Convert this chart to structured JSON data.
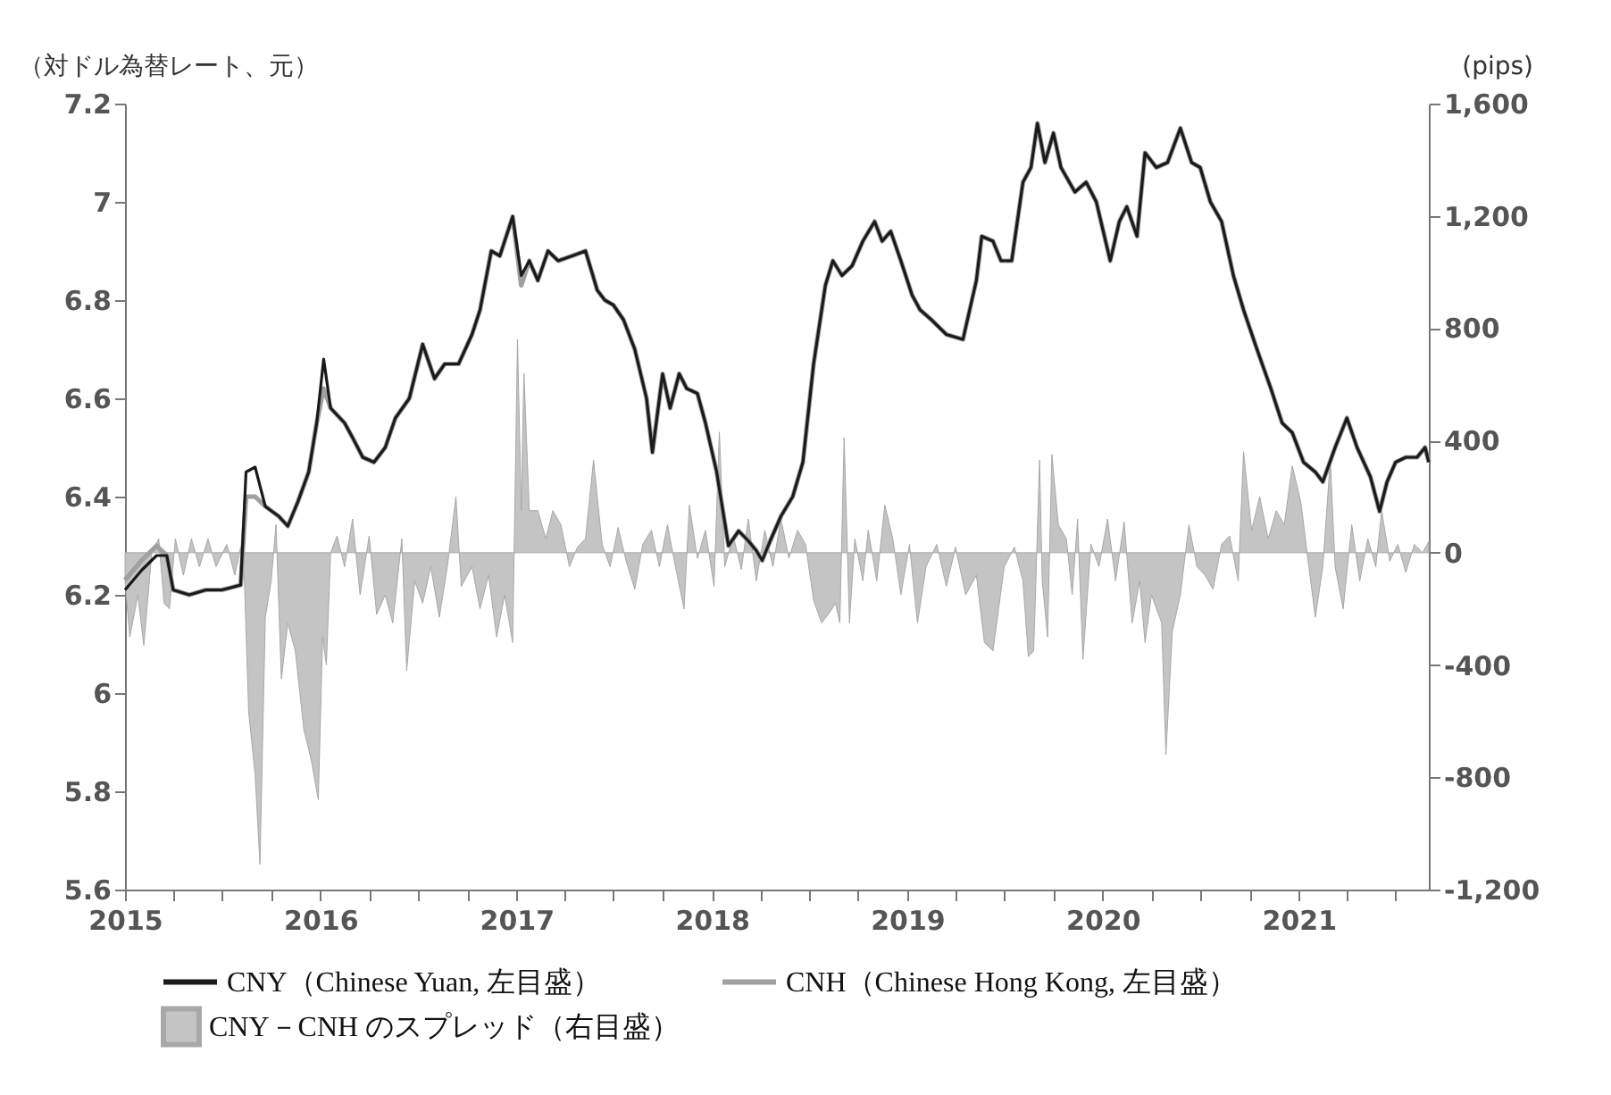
{
  "chart_data": {
    "type": "line",
    "ylabel": "（対ドル為替レート、元）",
    "y2label": "(pips)",
    "x": [
      "2015-01-01",
      "2015-02-01",
      "2015-03-01",
      "2015-03-20",
      "2015-04-01",
      "2015-05-01",
      "2015-06-01",
      "2015-07-01",
      "2015-08-05",
      "2015-08-15",
      "2015-09-01",
      "2015-09-20",
      "2015-10-15",
      "2015-11-01",
      "2015-11-20",
      "2015-12-10",
      "2015-12-25",
      "2016-01-07",
      "2016-01-20",
      "2016-02-15",
      "2016-03-01",
      "2016-03-20",
      "2016-04-10",
      "2016-05-01",
      "2016-05-20",
      "2016-06-15",
      "2016-07-10",
      "2016-08-01",
      "2016-08-20",
      "2016-09-15",
      "2016-10-10",
      "2016-10-25",
      "2016-11-15",
      "2016-12-01",
      "2016-12-25",
      "2017-01-10",
      "2017-01-25",
      "2017-02-10",
      "2017-03-01",
      "2017-03-20",
      "2017-04-15",
      "2017-05-10",
      "2017-06-01",
      "2017-06-15",
      "2017-07-01",
      "2017-07-20",
      "2017-08-10",
      "2017-09-01",
      "2017-09-12",
      "2017-10-01",
      "2017-10-15",
      "2017-11-01",
      "2017-11-15",
      "2017-12-05",
      "2017-12-20",
      "2018-01-10",
      "2018-02-01",
      "2018-02-20",
      "2018-03-10",
      "2018-03-25",
      "2018-04-05",
      "2018-04-20",
      "2018-05-10",
      "2018-06-01",
      "2018-06-20",
      "2018-07-10",
      "2018-08-01",
      "2018-08-15",
      "2018-09-01",
      "2018-09-20",
      "2018-10-10",
      "2018-11-01",
      "2018-11-15",
      "2018-12-01",
      "2018-12-20",
      "2019-01-10",
      "2019-01-25",
      "2019-02-15",
      "2019-03-15",
      "2019-04-15",
      "2019-05-10",
      "2019-05-20",
      "2019-06-10",
      "2019-06-25",
      "2019-07-15",
      "2019-08-05",
      "2019-08-20",
      "2019-09-01",
      "2019-09-15",
      "2019-10-01",
      "2019-10-15",
      "2019-11-10",
      "2019-12-01",
      "2019-12-20",
      "2020-01-15",
      "2020-02-01",
      "2020-02-15",
      "2020-03-05",
      "2020-03-20",
      "2020-04-10",
      "2020-05-01",
      "2020-05-25",
      "2020-06-15",
      "2020-07-01",
      "2020-07-20",
      "2020-08-10",
      "2020-09-01",
      "2020-09-20",
      "2020-10-15",
      "2020-11-10",
      "2020-12-01",
      "2020-12-20",
      "2021-01-10",
      "2021-02-01",
      "2021-02-15",
      "2021-03-10",
      "2021-04-01",
      "2021-04-20",
      "2021-05-15",
      "2021-06-01",
      "2021-06-15",
      "2021-07-01",
      "2021-07-20",
      "2021-08-10",
      "2021-08-25",
      "2021-09-01"
    ],
    "series": [
      {
        "name": "CNY（Chinese Yuan, 左目盛）",
        "color": "#1a1a1a",
        "values": [
          6.21,
          6.25,
          6.28,
          6.28,
          6.21,
          6.2,
          6.21,
          6.21,
          6.22,
          6.45,
          6.46,
          6.38,
          6.36,
          6.34,
          6.39,
          6.45,
          6.55,
          6.68,
          6.58,
          6.55,
          6.52,
          6.48,
          6.47,
          6.5,
          6.56,
          6.6,
          6.71,
          6.64,
          6.67,
          6.67,
          6.73,
          6.78,
          6.9,
          6.89,
          6.97,
          6.85,
          6.88,
          6.84,
          6.9,
          6.88,
          6.89,
          6.9,
          6.82,
          6.8,
          6.79,
          6.76,
          6.7,
          6.6,
          6.49,
          6.65,
          6.58,
          6.65,
          6.62,
          6.61,
          6.55,
          6.45,
          6.3,
          6.33,
          6.31,
          6.29,
          6.27,
          6.31,
          6.36,
          6.4,
          6.47,
          6.67,
          6.83,
          6.88,
          6.85,
          6.87,
          6.92,
          6.96,
          6.92,
          6.94,
          6.88,
          6.81,
          6.78,
          6.76,
          6.73,
          6.72,
          6.84,
          6.93,
          6.92,
          6.88,
          6.88,
          7.04,
          7.07,
          7.16,
          7.08,
          7.14,
          7.07,
          7.02,
          7.04,
          7.0,
          6.88,
          6.96,
          6.99,
          6.93,
          7.1,
          7.07,
          7.08,
          7.15,
          7.08,
          7.07,
          7.0,
          6.96,
          6.85,
          6.78,
          6.7,
          6.62,
          6.55,
          6.53,
          6.47,
          6.45,
          6.43,
          6.5,
          6.56,
          6.5,
          6.44,
          6.37,
          6.43,
          6.47,
          6.48,
          6.48,
          6.5,
          6.47
        ]
      },
      {
        "name": "CNH（Chinese Hong Kong, 左目盛）",
        "color": "#a0a0a0",
        "values": [
          6.23,
          6.27,
          6.3,
          6.28,
          6.21,
          6.2,
          6.21,
          6.21,
          6.22,
          6.4,
          6.4,
          6.38,
          6.36,
          6.34,
          6.39,
          6.45,
          6.55,
          6.62,
          6.58,
          6.55,
          6.52,
          6.48,
          6.47,
          6.5,
          6.56,
          6.6,
          6.71,
          6.64,
          6.67,
          6.67,
          6.73,
          6.78,
          6.9,
          6.89,
          6.97,
          6.83,
          6.88,
          6.84,
          6.9,
          6.88,
          6.89,
          6.9,
          6.82,
          6.8,
          6.79,
          6.76,
          6.7,
          6.6,
          6.49,
          6.65,
          6.58,
          6.65,
          6.62,
          6.61,
          6.55,
          6.45,
          6.3,
          6.33,
          6.31,
          6.29,
          6.27,
          6.31,
          6.36,
          6.4,
          6.47,
          6.67,
          6.83,
          6.88,
          6.85,
          6.87,
          6.92,
          6.96,
          6.92,
          6.94,
          6.88,
          6.81,
          6.78,
          6.76,
          6.73,
          6.72,
          6.84,
          6.93,
          6.92,
          6.88,
          6.88,
          7.04,
          7.07,
          7.16,
          7.08,
          7.14,
          7.07,
          7.02,
          7.04,
          7.0,
          6.88,
          6.96,
          6.99,
          6.93,
          7.1,
          7.07,
          7.08,
          7.15,
          7.08,
          7.07,
          7.0,
          6.96,
          6.85,
          6.78,
          6.7,
          6.62,
          6.55,
          6.53,
          6.47,
          6.45,
          6.43,
          6.5,
          6.56,
          6.5,
          6.44,
          6.37,
          6.43,
          6.47,
          6.48,
          6.48,
          6.5,
          6.47
        ]
      },
      {
        "name": "CNY－CNH のスプレッド（右目盛）",
        "type": "area",
        "axis": "y2",
        "color": "#c4c4c4",
        "x": [
          "2015-01-01",
          "2015-01-10",
          "2015-01-25",
          "2015-02-05",
          "2015-02-20",
          "2015-03-05",
          "2015-03-15",
          "2015-03-25",
          "2015-04-05",
          "2015-04-20",
          "2015-05-05",
          "2015-05-20",
          "2015-06-05",
          "2015-06-20",
          "2015-07-10",
          "2015-07-25",
          "2015-08-05",
          "2015-08-12",
          "2015-08-20",
          "2015-09-01",
          "2015-09-10",
          "2015-09-20",
          "2015-10-01",
          "2015-10-10",
          "2015-10-20",
          "2015-11-01",
          "2015-11-15",
          "2015-12-01",
          "2015-12-15",
          "2015-12-28",
          "2016-01-05",
          "2016-01-12",
          "2016-01-20",
          "2016-02-01",
          "2016-02-15",
          "2016-03-01",
          "2016-03-15",
          "2016-04-01",
          "2016-04-15",
          "2016-05-01",
          "2016-05-15",
          "2016-06-01",
          "2016-06-10",
          "2016-06-25",
          "2016-07-10",
          "2016-07-25",
          "2016-08-10",
          "2016-08-25",
          "2016-09-10",
          "2016-09-20",
          "2016-10-10",
          "2016-10-25",
          "2016-11-10",
          "2016-11-25",
          "2016-12-10",
          "2016-12-25",
          "2017-01-03",
          "2017-01-10",
          "2017-01-15",
          "2017-01-25",
          "2017-02-10",
          "2017-02-25",
          "2017-03-10",
          "2017-03-25",
          "2017-04-10",
          "2017-04-25",
          "2017-05-10",
          "2017-05-25",
          "2017-06-10",
          "2017-06-25",
          "2017-07-10",
          "2017-07-25",
          "2017-08-10",
          "2017-08-25",
          "2017-09-10",
          "2017-09-25",
          "2017-10-10",
          "2017-10-25",
          "2017-11-10",
          "2017-11-20",
          "2017-12-05",
          "2017-12-20",
          "2018-01-05",
          "2018-01-15",
          "2018-01-25",
          "2018-02-10",
          "2018-02-25",
          "2018-03-10",
          "2018-03-25",
          "2018-04-10",
          "2018-04-25",
          "2018-05-10",
          "2018-05-25",
          "2018-06-10",
          "2018-06-25",
          "2018-07-10",
          "2018-07-25",
          "2018-08-10",
          "2018-08-20",
          "2018-08-28",
          "2018-09-05",
          "2018-09-15",
          "2018-09-25",
          "2018-10-10",
          "2018-10-20",
          "2018-11-05",
          "2018-11-20",
          "2018-12-05",
          "2018-12-20",
          "2019-01-05",
          "2019-01-20",
          "2019-02-05",
          "2019-02-25",
          "2019-03-15",
          "2019-04-01",
          "2019-04-20",
          "2019-05-10",
          "2019-05-25",
          "2019-06-10",
          "2019-07-01",
          "2019-07-20",
          "2019-08-05",
          "2019-08-15",
          "2019-08-25",
          "2019-09-05",
          "2019-09-10",
          "2019-09-20",
          "2019-09-28",
          "2019-10-10",
          "2019-10-25",
          "2019-11-05",
          "2019-11-15",
          "2019-11-25",
          "2019-12-10",
          "2019-12-25",
          "2020-01-10",
          "2020-01-25",
          "2020-02-10",
          "2020-02-25",
          "2020-03-10",
          "2020-03-20",
          "2020-04-01",
          "2020-04-20",
          "2020-04-28",
          "2020-05-10",
          "2020-05-25",
          "2020-06-10",
          "2020-06-25",
          "2020-07-10",
          "2020-07-25",
          "2020-08-10",
          "2020-08-25",
          "2020-09-10",
          "2020-09-20",
          "2020-10-05",
          "2020-10-20",
          "2020-11-05",
          "2020-11-20",
          "2020-12-05",
          "2020-12-20",
          "2021-01-05",
          "2021-01-20",
          "2021-02-01",
          "2021-02-15",
          "2021-03-01",
          "2021-03-10",
          "2021-03-25",
          "2021-04-10",
          "2021-04-25",
          "2021-05-10",
          "2021-05-25",
          "2021-06-05",
          "2021-06-20",
          "2021-07-05",
          "2021-07-20",
          "2021-08-05",
          "2021-08-20",
          "2021-09-01"
        ],
        "values": [
          -100,
          -300,
          -150,
          -330,
          0,
          50,
          -180,
          -200,
          50,
          -80,
          50,
          -50,
          50,
          -50,
          30,
          -80,
          20,
          -100,
          -570,
          -790,
          -1110,
          -230,
          -100,
          100,
          -450,
          -250,
          -350,
          -630,
          -740,
          -880,
          -300,
          -400,
          0,
          60,
          -50,
          120,
          -150,
          60,
          -220,
          -150,
          -250,
          50,
          -420,
          -100,
          -180,
          -50,
          -230,
          -50,
          200,
          -120,
          -50,
          -200,
          -80,
          -300,
          -150,
          -320,
          760,
          150,
          640,
          150,
          150,
          50,
          150,
          100,
          -50,
          20,
          50,
          330,
          30,
          -50,
          90,
          -30,
          -130,
          30,
          80,
          -50,
          100,
          -50,
          -200,
          170,
          -20,
          80,
          -120,
          430,
          -50,
          60,
          -60,
          120,
          -100,
          80,
          -50,
          120,
          -20,
          80,
          30,
          -170,
          -250,
          -210,
          -180,
          -250,
          410,
          -250,
          50,
          -100,
          80,
          -100,
          170,
          50,
          -150,
          30,
          -250,
          -50,
          30,
          -120,
          20,
          -150,
          -80,
          -320,
          -350,
          -50,
          20,
          -100,
          -370,
          -350,
          330,
          -100,
          -300,
          350,
          100,
          50,
          -150,
          120,
          -380,
          30,
          -50,
          120,
          -100,
          110,
          -250,
          -100,
          -320,
          -150,
          -250,
          -720,
          -280,
          -150,
          100,
          -50,
          -80,
          -130,
          30,
          60,
          -100,
          360,
          80,
          200,
          50,
          150,
          100,
          310,
          180,
          -50,
          -230,
          -50,
          330,
          -50,
          -200,
          100,
          -100,
          50,
          -50,
          150,
          -30,
          30,
          -70,
          30,
          0,
          40
        ]
      }
    ],
    "xlim": [
      "2015-01-01",
      "2021-09-01"
    ],
    "xticks": [
      "2015",
      {
        "value": "2015-04",
        "label": null
      },
      {
        "value": "2015-07",
        "label": null
      },
      {
        "value": "2015-10",
        "label": null
      },
      "2016",
      {
        "value": "2016-04",
        "label": null
      },
      {
        "value": "2016-07",
        "label": null
      },
      {
        "value": "2016-10",
        "label": null
      },
      "2017",
      {
        "value": "2017-04",
        "label": null
      },
      {
        "value": "2017-07",
        "label": null
      },
      {
        "value": "2017-10",
        "label": null
      },
      "2018",
      {
        "value": "2018-04",
        "label": null
      },
      {
        "value": "2018-07",
        "label": null
      },
      {
        "value": "2018-10",
        "label": null
      },
      "2019",
      {
        "value": "2019-04",
        "label": null
      },
      {
        "value": "2019-07",
        "label": null
      },
      {
        "value": "2019-10",
        "label": null
      },
      "2020",
      {
        "value": "2020-04",
        "label": null
      },
      {
        "value": "2020-07",
        "label": null
      },
      {
        "value": "2020-10",
        "label": null
      },
      "2021",
      {
        "value": "2021-04",
        "label": null
      },
      {
        "value": "2021-07",
        "label": null
      }
    ],
    "ylim": [
      5.6,
      7.2
    ],
    "yticks": [
      5.6,
      5.8,
      6,
      6.2,
      6.4,
      6.6,
      6.8,
      7,
      7.2
    ],
    "y2lim": [
      -1200,
      1600
    ],
    "y2ticks": [
      {
        "value": -1200,
        "label": "-1,200"
      },
      -800,
      -400,
      0,
      400,
      800,
      {
        "value": 1200,
        "label": "1,200"
      },
      {
        "value": 1600,
        "label": "1,600"
      }
    ],
    "grid": false,
    "legend": "bottom"
  }
}
